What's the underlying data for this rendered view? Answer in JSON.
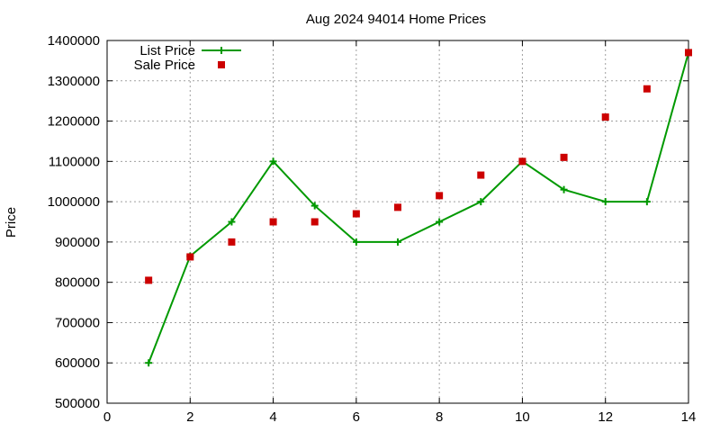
{
  "chart_data": {
    "type": "line",
    "title": "Aug 2024 94014 Home Prices",
    "xlabel": "",
    "ylabel": "Price",
    "xlim": [
      0,
      14
    ],
    "ylim": [
      500000,
      1400000
    ],
    "x_ticks": [
      0,
      2,
      4,
      6,
      8,
      10,
      12,
      14
    ],
    "y_ticks": [
      500000,
      600000,
      700000,
      800000,
      900000,
      1000000,
      1100000,
      1200000,
      1300000,
      1400000
    ],
    "grid": true,
    "legend_position": "top-left",
    "series": [
      {
        "name": "List Price",
        "style": "line-with-plus-markers",
        "color": "#009900",
        "x": [
          1,
          2,
          3,
          4,
          5,
          6,
          7,
          8,
          9,
          10,
          11,
          12,
          13,
          14
        ],
        "values": [
          600000,
          865000,
          950000,
          1100000,
          990000,
          900000,
          900000,
          950000,
          1000000,
          1100000,
          1030000,
          1000000,
          1000000,
          1370000
        ]
      },
      {
        "name": "Sale Price",
        "style": "square-markers",
        "color": "#cc0000",
        "x": [
          1,
          2,
          3,
          4,
          5,
          6,
          7,
          8,
          9,
          10,
          11,
          12,
          13,
          14
        ],
        "values": [
          805000,
          863000,
          900000,
          950000,
          950000,
          970000,
          986000,
          1015000,
          1066000,
          1100000,
          1110000,
          1210000,
          1280000,
          1370000
        ]
      }
    ]
  }
}
